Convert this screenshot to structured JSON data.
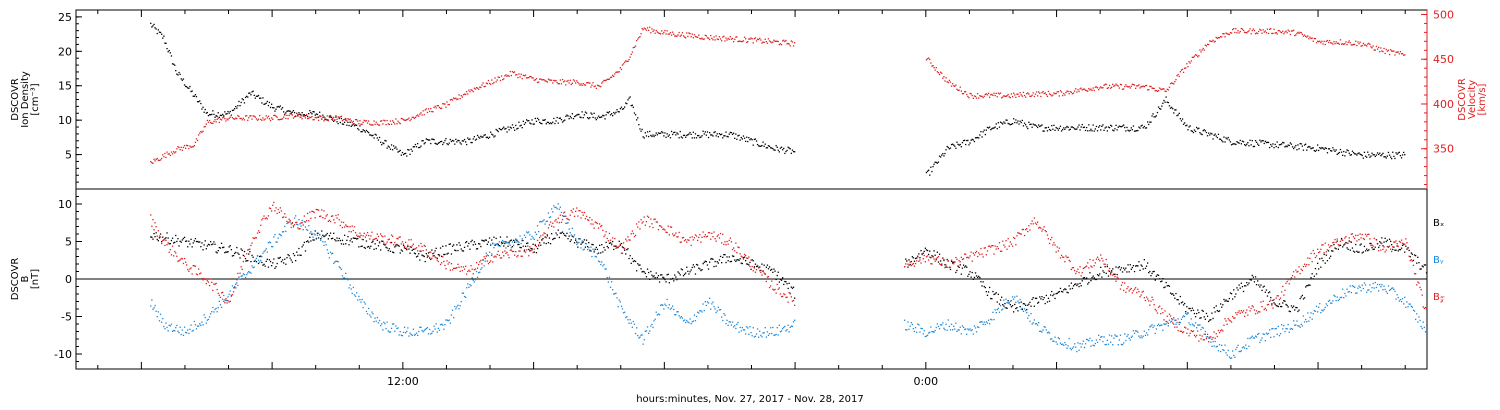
{
  "chart_data": [
    {
      "type": "scatter",
      "panel": "top",
      "ylabel_left": [
        "DSCOVR",
        "Ion Density",
        "[cm⁻³]"
      ],
      "ylabel_right": [
        "DSCOVR",
        "Velocity",
        "[km/s]"
      ],
      "ylim_left": [
        0,
        26
      ],
      "yticks_left": [
        5,
        10,
        15,
        20,
        25
      ],
      "ylim_right": [
        305,
        505
      ],
      "yticks_right": [
        350,
        400,
        450,
        500
      ],
      "series": [
        {
          "axis": "left",
          "color": "#000000",
          "points": [
            [
              -5.8,
              24
            ],
            [
              -5.5,
              22
            ],
            [
              -5.2,
              17
            ],
            [
              -4.9,
              14.5
            ],
            [
              -4.5,
              11
            ],
            [
              -4,
              11
            ],
            [
              -3.5,
              14
            ],
            [
              -3,
              12
            ],
            [
              -2.5,
              11
            ],
            [
              -2,
              11
            ],
            [
              -1.5,
              10
            ],
            [
              -1,
              9
            ],
            [
              -0.5,
              7
            ],
            [
              0,
              5
            ],
            [
              0.5,
              7
            ],
            [
              1,
              7
            ],
            [
              1.5,
              7
            ],
            [
              2,
              8
            ],
            [
              2.5,
              9
            ],
            [
              3,
              10
            ],
            [
              3.5,
              10
            ],
            [
              4,
              11
            ],
            [
              4.5,
              10.5
            ],
            [
              5,
              11.5
            ],
            [
              5.2,
              13
            ],
            [
              5.5,
              8
            ],
            [
              6,
              8
            ],
            [
              7,
              8
            ],
            [
              7.5,
              8
            ],
            [
              8,
              7
            ],
            [
              8.5,
              6
            ],
            [
              9,
              5.5
            ],
            [
              12,
              2
            ],
            [
              12.5,
              6
            ],
            [
              13,
              7
            ],
            [
              13.5,
              9
            ],
            [
              14,
              10
            ],
            [
              14.5,
              9
            ],
            [
              15,
              9
            ],
            [
              15.5,
              9
            ],
            [
              16,
              9
            ],
            [
              16.5,
              9
            ],
            [
              17,
              9
            ],
            [
              17.5,
              13
            ],
            [
              18,
              9
            ],
            [
              18.5,
              8
            ],
            [
              19,
              7
            ],
            [
              20,
              6.5
            ],
            [
              21,
              6
            ],
            [
              21.5,
              5.5
            ],
            [
              22,
              5
            ],
            [
              22.5,
              5
            ],
            [
              23,
              5
            ]
          ]
        },
        {
          "axis": "right",
          "color": "#e02020",
          "points": [
            [
              -5.8,
              335
            ],
            [
              -5.2,
              350
            ],
            [
              -4.8,
              355
            ],
            [
              -4.5,
              380
            ],
            [
              -4,
              385
            ],
            [
              -3,
              385
            ],
            [
              -2.5,
              388
            ],
            [
              -2,
              385
            ],
            [
              -1.5,
              385
            ],
            [
              -1,
              380
            ],
            [
              -0.5,
              380
            ],
            [
              0,
              382
            ],
            [
              0.5,
              392
            ],
            [
              1,
              400
            ],
            [
              1.5,
              415
            ],
            [
              2,
              425
            ],
            [
              2.5,
              435
            ],
            [
              3,
              428
            ],
            [
              3.5,
              425
            ],
            [
              4,
              425
            ],
            [
              4.5,
              420
            ],
            [
              5,
              440
            ],
            [
              5.2,
              455
            ],
            [
              5.5,
              485
            ],
            [
              6,
              480
            ],
            [
              7,
              475
            ],
            [
              8,
              472
            ],
            [
              8.5,
              470
            ],
            [
              9,
              468
            ],
            [
              12,
              452
            ],
            [
              12.5,
              425
            ],
            [
              13,
              410
            ],
            [
              14,
              410
            ],
            [
              14.5,
              412
            ],
            [
              15,
              412
            ],
            [
              16,
              420
            ],
            [
              17,
              420
            ],
            [
              17.5,
              415
            ],
            [
              18,
              445
            ],
            [
              18.5,
              470
            ],
            [
              19,
              482
            ],
            [
              20,
              482
            ],
            [
              20.5,
              480
            ],
            [
              21,
              470
            ],
            [
              21.5,
              470
            ],
            [
              22,
              468
            ],
            [
              22.5,
              460
            ],
            [
              23,
              455
            ]
          ]
        }
      ]
    },
    {
      "type": "scatter",
      "panel": "bottom",
      "ylabel": [
        "DSCOVR",
        "B",
        "[nT]"
      ],
      "ylim": [
        -12,
        12
      ],
      "yticks": [
        -10,
        -5,
        0,
        5,
        10
      ],
      "zero_line": true,
      "legend": [
        {
          "label": "Bₓ",
          "color": "#000000"
        },
        {
          "label": "Bᵧ",
          "color": "#1e88d8"
        },
        {
          "label": "B𝓏",
          "color": "#e02020"
        }
      ],
      "series": [
        {
          "name": "Bₓ",
          "color": "#000000",
          "points": [
            [
              -5.8,
              6
            ],
            [
              -5,
              5
            ],
            [
              -4,
              4
            ],
            [
              -3,
              2
            ],
            [
              -2.5,
              3
            ],
            [
              -2,
              6
            ],
            [
              -1,
              5
            ],
            [
              0,
              4
            ],
            [
              0.5,
              3
            ],
            [
              1,
              4
            ],
            [
              1.5,
              4.5
            ],
            [
              2,
              5
            ],
            [
              2.5,
              5
            ],
            [
              3,
              4
            ],
            [
              3.5,
              6
            ],
            [
              4,
              5
            ],
            [
              4.5,
              4
            ],
            [
              5,
              5
            ],
            [
              5.3,
              2
            ],
            [
              5.5,
              1
            ],
            [
              6,
              0
            ],
            [
              6.5,
              1
            ],
            [
              7,
              2
            ],
            [
              7.5,
              3
            ],
            [
              8,
              2
            ],
            [
              8.5,
              1
            ],
            [
              9,
              -2
            ],
            [
              11.5,
              2
            ],
            [
              12,
              4
            ],
            [
              12.5,
              2
            ],
            [
              13,
              1
            ],
            [
              13.5,
              -2
            ],
            [
              14,
              -4
            ],
            [
              15,
              -2
            ],
            [
              16,
              1
            ],
            [
              17,
              2
            ],
            [
              17.5,
              -1
            ],
            [
              18,
              -4
            ],
            [
              18.5,
              -5
            ],
            [
              19,
              -2
            ],
            [
              19.5,
              0
            ],
            [
              20,
              -3
            ],
            [
              20.5,
              -4
            ],
            [
              21,
              2
            ],
            [
              21.5,
              5
            ],
            [
              22,
              4
            ],
            [
              22.5,
              5
            ],
            [
              23,
              4
            ],
            [
              23.5,
              1
            ]
          ]
        },
        {
          "name": "Bᵧ",
          "color": "#1e88d8",
          "points": [
            [
              -5.8,
              -3
            ],
            [
              -5.5,
              -6
            ],
            [
              -5,
              -7
            ],
            [
              -4.5,
              -5
            ],
            [
              -4,
              -2
            ],
            [
              -3,
              5
            ],
            [
              -2.5,
              8
            ],
            [
              -2,
              6
            ],
            [
              -1.5,
              2
            ],
            [
              -1,
              -3
            ],
            [
              -0.5,
              -6
            ],
            [
              0,
              -7
            ],
            [
              0.5,
              -7
            ],
            [
              1,
              -6
            ],
            [
              2,
              4
            ],
            [
              3,
              6
            ],
            [
              3.5,
              10
            ],
            [
              4,
              5
            ],
            [
              4.5,
              3
            ],
            [
              5,
              -4
            ],
            [
              5.5,
              -8
            ],
            [
              6,
              -3
            ],
            [
              6.5,
              -6
            ],
            [
              7,
              -3
            ],
            [
              7.5,
              -6
            ],
            [
              8,
              -7
            ],
            [
              8.5,
              -7
            ],
            [
              9,
              -6
            ],
            [
              11.5,
              -6
            ],
            [
              12,
              -7
            ],
            [
              12.5,
              -6
            ],
            [
              13,
              -7
            ],
            [
              13.5,
              -5
            ],
            [
              14,
              -2
            ],
            [
              14.5,
              -6
            ],
            [
              15,
              -8
            ],
            [
              15.5,
              -9
            ],
            [
              16,
              -8
            ],
            [
              16.5,
              -8
            ],
            [
              17,
              -7
            ],
            [
              17.5,
              -6
            ],
            [
              18,
              -5
            ],
            [
              18.5,
              -8
            ],
            [
              19,
              -10
            ],
            [
              19.5,
              -8
            ],
            [
              20,
              -7
            ],
            [
              20.5,
              -6
            ],
            [
              21,
              -4
            ],
            [
              21.5,
              -2
            ],
            [
              22,
              -1
            ],
            [
              22.5,
              -1
            ],
            [
              23,
              -3
            ],
            [
              23.5,
              -7
            ]
          ]
        },
        {
          "name": "B𝓏",
          "color": "#e02020",
          "points": [
            [
              -5.8,
              8
            ],
            [
              -5.5,
              5
            ],
            [
              -5,
              2
            ],
            [
              -4.5,
              0
            ],
            [
              -4,
              -3
            ],
            [
              -3.5,
              5
            ],
            [
              -3,
              10
            ],
            [
              -2.5,
              7
            ],
            [
              -2,
              9
            ],
            [
              -1.5,
              8
            ],
            [
              -1,
              6
            ],
            [
              0,
              5
            ],
            [
              0.5,
              4
            ],
            [
              1,
              2
            ],
            [
              1.5,
              1
            ],
            [
              2,
              3
            ],
            [
              3,
              4
            ],
            [
              3.5,
              8
            ],
            [
              4,
              9
            ],
            [
              4.5,
              7
            ],
            [
              5,
              4
            ],
            [
              5.5,
              8
            ],
            [
              6,
              7
            ],
            [
              6.5,
              5
            ],
            [
              7,
              6
            ],
            [
              7.5,
              5
            ],
            [
              8,
              2
            ],
            [
              8.5,
              -1
            ],
            [
              9,
              -3
            ],
            [
              11.5,
              2
            ],
            [
              12,
              3
            ],
            [
              12.5,
              2
            ],
            [
              13,
              3
            ],
            [
              14,
              5
            ],
            [
              14.5,
              8
            ],
            [
              15,
              4
            ],
            [
              15.5,
              1
            ],
            [
              16,
              3
            ],
            [
              16.5,
              -1
            ],
            [
              17,
              -2
            ],
            [
              17.5,
              -5
            ],
            [
              18,
              -7
            ],
            [
              18.5,
              -8
            ],
            [
              19,
              -5
            ],
            [
              19.5,
              -4
            ],
            [
              20,
              -3
            ],
            [
              20.5,
              1
            ],
            [
              21,
              4
            ],
            [
              21.5,
              5
            ],
            [
              22,
              6
            ],
            [
              22.5,
              4
            ],
            [
              23,
              5
            ],
            [
              23.5,
              -5
            ]
          ]
        }
      ]
    }
  ],
  "x_axis": {
    "range_hours": [
      -7.5,
      23.5
    ],
    "tick_labels": [
      {
        "hour": 0,
        "label": "12:00"
      },
      {
        "hour": 12,
        "label": "0:00"
      }
    ],
    "title": "hours:minutes, Nov. 27, 2017 - Nov. 28, 2017"
  }
}
